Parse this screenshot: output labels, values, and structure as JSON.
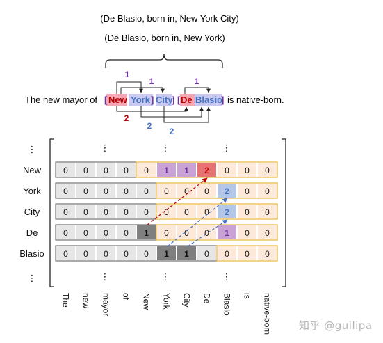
{
  "triples": [
    "(De Blasio, born in, New York City)",
    "(De Blasio, born in, New York)"
  ],
  "sentence": {
    "prefix": "The new mayor of",
    "bracket_open_outer": "[",
    "word_new": "New",
    "word_york": "York",
    "bracket_close_inner": "]",
    "word_city": "City",
    "bracket_close_outer": "]",
    "bracket_open_de": "[",
    "word_de": "De",
    "word_blasio": "Blasio",
    "bracket_close_de": "]",
    "suffix": "is native-born."
  },
  "link_labels": {
    "purple_a": "1",
    "purple_b": "1",
    "purple_c": "1",
    "red": "2",
    "blue_a": "2",
    "blue_b": "2"
  },
  "colors": {
    "purple": "#7030a0",
    "red": "#c00000",
    "blue": "#4472c4",
    "entity_red_bg": "#f4a6b4",
    "entity_blue_bg": "#c9c9f0",
    "grey_cell": "#e6e6e6",
    "orange_cell": "#fde9d9",
    "orange_border": "#e6b33a",
    "dark_cell": "#7f7f7f",
    "purple_cell": "#c9a3d6",
    "red_cell": "#e57373",
    "blue_cell": "#b4c7e7"
  },
  "row_labels": [
    "New",
    "York",
    "City",
    "De",
    "Blasio"
  ],
  "column_labels": [
    "The",
    "new",
    "mayor",
    "of",
    "New",
    "York",
    "City",
    "De",
    "Blasio",
    "is",
    "native-born"
  ],
  "ellipsis": "⋮",
  "matrix": [
    [
      "0",
      "0",
      "0",
      "0",
      "0",
      "1",
      "1",
      "2",
      "0",
      "0",
      "0"
    ],
    [
      "0",
      "0",
      "0",
      "0",
      "0",
      "0",
      "0",
      "0",
      "2",
      "0",
      "0"
    ],
    [
      "0",
      "0",
      "0",
      "0",
      "0",
      "0",
      "0",
      "0",
      "2",
      "0",
      "0"
    ],
    [
      "0",
      "0",
      "0",
      "0",
      "1",
      "0",
      "0",
      "0",
      "1",
      "0",
      "0"
    ],
    [
      "0",
      "0",
      "0",
      "0",
      "0",
      "1",
      "1",
      "0",
      "0",
      "0",
      "0"
    ]
  ],
  "watermark": "知乎 @guilipa"
}
